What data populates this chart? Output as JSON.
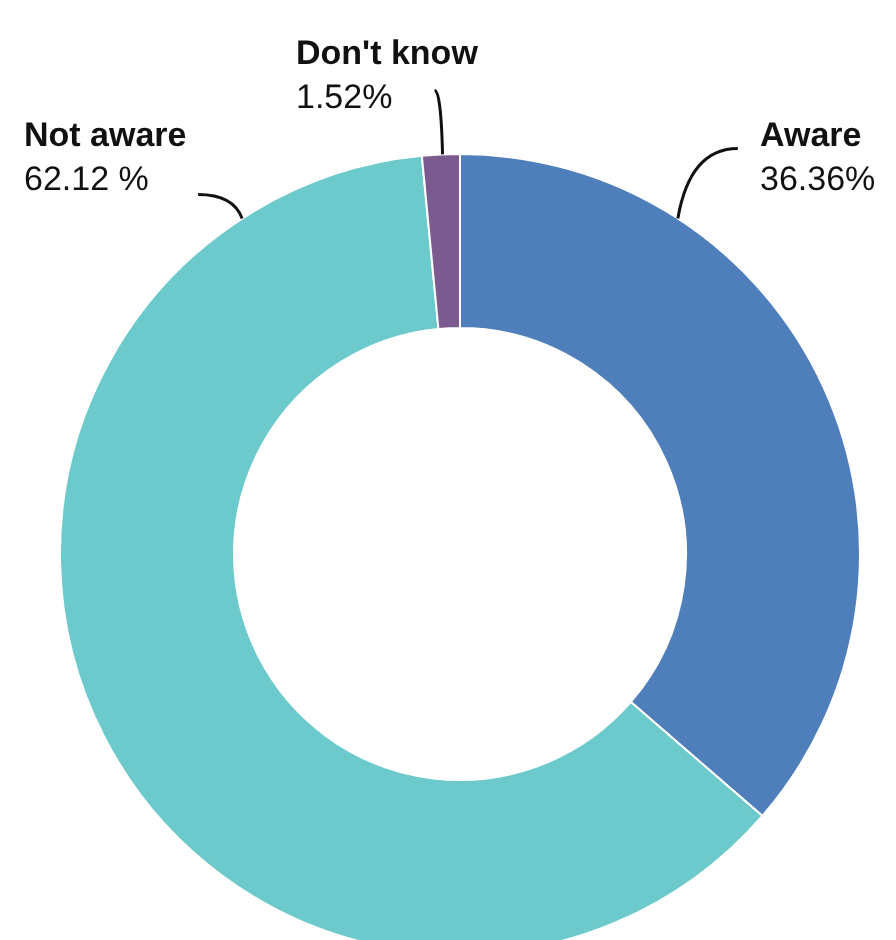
{
  "chart_data": {
    "type": "donut",
    "categories": [
      "Aware",
      "Not aware",
      "Don't know"
    ],
    "values": [
      36.36,
      62.12,
      1.52
    ],
    "colors": [
      "#4f7fba",
      "#6ccacc",
      "#7b5b8f"
    ],
    "value_labels": [
      "36.36%",
      "62.12 %",
      "1.52%"
    ]
  }
}
